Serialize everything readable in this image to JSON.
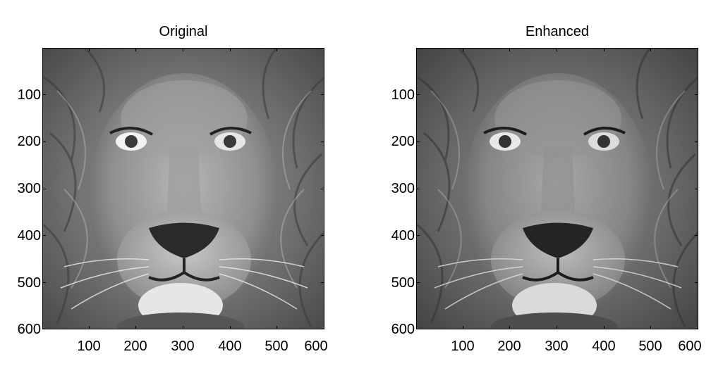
{
  "panels": [
    {
      "title": "Original",
      "x_ticks": [
        "100",
        "200",
        "300",
        "400",
        "500",
        "600"
      ],
      "y_ticks": [
        "100",
        "200",
        "300",
        "400",
        "500",
        "600"
      ],
      "variant": "original"
    },
    {
      "title": "Enhanced",
      "x_ticks": [
        "100",
        "200",
        "300",
        "400",
        "500",
        "600"
      ],
      "y_ticks": [
        "100",
        "200",
        "300",
        "400",
        "500",
        "600"
      ],
      "variant": "enhanced"
    }
  ],
  "image": {
    "subject": "lion face grayscale"
  }
}
